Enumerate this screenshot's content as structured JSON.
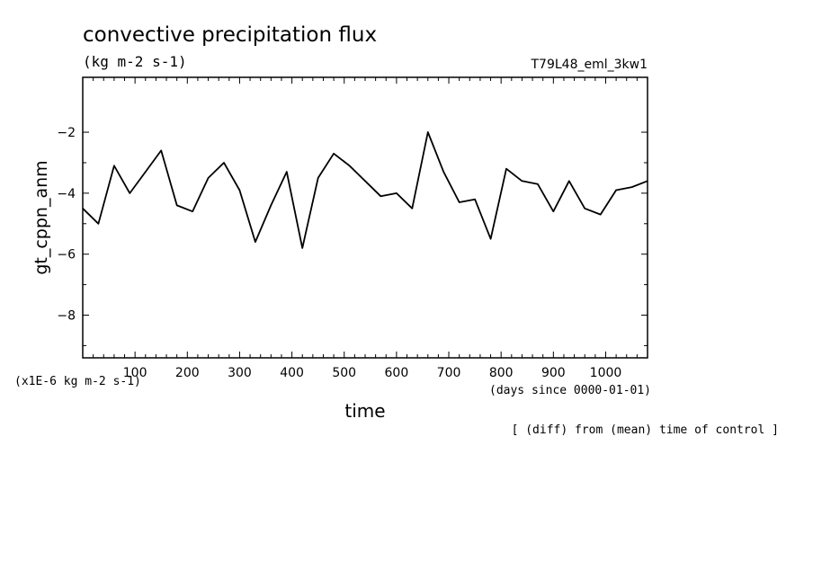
{
  "chart_data": {
    "type": "line",
    "title": "convective precipitation flux",
    "subtitle": "(kg m-2 s-1)",
    "run_label": "T79L48_eml_3kw1",
    "xlabel": "time",
    "ylabel": "gt_cppn_anm",
    "x_unit_label": "(days since 0000-01-01)",
    "y_unit_label": "(x1E-6 kg m-2 s-1)",
    "footnote": "[ (diff) from (mean) time of control ]",
    "xlim": [
      0,
      1080
    ],
    "ylim": [
      -9.4,
      -0.2
    ],
    "x_ticks": [
      100,
      200,
      300,
      400,
      500,
      600,
      700,
      800,
      900,
      1000
    ],
    "y_ticks": [
      -2,
      -4,
      -6,
      -8
    ],
    "series": [
      {
        "color": "#000000",
        "x": [
          0,
          30,
          60,
          90,
          120,
          150,
          180,
          210,
          240,
          270,
          300,
          330,
          360,
          390,
          420,
          450,
          480,
          510,
          540,
          570,
          600,
          630,
          660,
          690,
          720,
          750,
          780,
          810,
          840,
          870,
          900,
          930,
          960,
          990,
          1020,
          1050,
          1080
        ],
        "y": [
          -4.5,
          -5.0,
          -3.1,
          -4.0,
          -3.3,
          -2.6,
          -4.4,
          -4.6,
          -3.5,
          -3.0,
          -3.9,
          -5.6,
          -4.4,
          -3.3,
          -5.8,
          -3.5,
          -2.7,
          -3.1,
          -3.6,
          -4.1,
          -4.0,
          -4.5,
          -2.0,
          -3.3,
          -4.3,
          -4.2,
          -5.5,
          -3.2,
          -3.6,
          -3.7,
          -4.6,
          -3.6,
          -4.5,
          -4.7,
          -3.9,
          -3.8,
          -3.6
        ]
      }
    ]
  }
}
